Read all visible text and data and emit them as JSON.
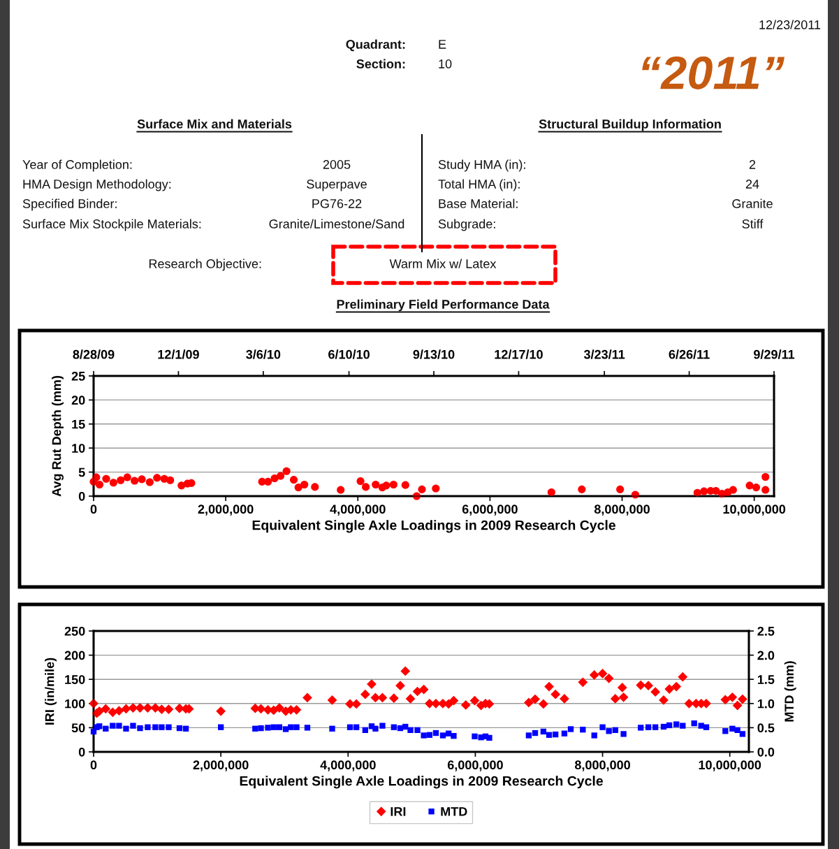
{
  "chart_data": [
    {
      "type": "other",
      "annotations": [
        "12/23/2011",
        "Quadrant:",
        "E",
        "Section:",
        "10",
        "“2011”",
        "Surface Mix and Materials",
        "Structural Buildup Information",
        "Year of Completion:",
        "2005",
        "HMA Design Methodology:",
        "Superpave",
        "Specified Binder:",
        "PG76-22",
        "Surface Mix Stockpile Materials:",
        "Granite/Limestone/Sand",
        "Study HMA (in):",
        "2",
        "Total HMA (in):",
        "24",
        "Base Material:",
        "Granite",
        "Subgrade:",
        "Stiff",
        "Research Objective:",
        "Warm Mix w/ Latex",
        "Preliminary Field Performance Data"
      ]
    },
    {
      "type": "scatter",
      "xlabel": "Equivalent Single Axle Loadings in 2009 Research Cycle",
      "ylabel": "Avg Rut Depth (mm)",
      "color": "#ff0000",
      "marker": "circle",
      "grid": "y",
      "x": [
        0,
        40000,
        90000,
        190000,
        300000,
        410000,
        510000,
        620000,
        730000,
        850000,
        960000,
        1070000,
        1160000,
        1330000,
        1420000,
        1480000,
        2550000,
        2640000,
        2740000,
        2830000,
        2920000,
        3030000,
        3100000,
        3190000,
        3350000,
        3740000,
        4040000,
        4120000,
        4270000,
        4370000,
        4430000,
        4540000,
        4720000,
        4890000,
        4970000,
        5180000,
        6930000,
        7390000,
        7970000,
        8200000,
        9140000,
        9240000,
        9340000,
        9420000,
        9510000,
        9600000,
        9680000,
        9930000,
        10030000,
        10170000,
        10170000
      ],
      "values": [
        3.0,
        3.9,
        2.4,
        3.6,
        2.8,
        3.3,
        3.9,
        3.2,
        3.5,
        2.9,
        3.8,
        3.6,
        3.3,
        2.2,
        2.6,
        2.7,
        3.0,
        3.0,
        3.7,
        4.2,
        5.2,
        3.4,
        1.8,
        2.4,
        1.9,
        1.3,
        3.1,
        1.9,
        2.4,
        1.8,
        2.2,
        2.4,
        2.3,
        0.0,
        1.4,
        1.6,
        0.8,
        1.4,
        1.4,
        0.3,
        0.7,
        1.0,
        1.1,
        1.1,
        0.5,
        0.8,
        1.3,
        2.2,
        1.8,
        4.0,
        1.3
      ],
      "xlim": [
        0,
        10300000
      ],
      "xticks": [
        0,
        {
          "value": 2000000,
          "label": "2,000,000"
        },
        {
          "value": 4000000,
          "label": "4,000,000"
        },
        {
          "value": 6000000,
          "label": "6,000,000"
        },
        {
          "value": 8000000,
          "label": "8,000,000"
        },
        {
          "value": 10000000,
          "label": "10,000,000"
        }
      ],
      "ylim": [
        0,
        25
      ],
      "yticks": [
        0,
        5,
        10,
        15,
        20,
        25
      ],
      "x2lim": [
        "2009-08-28",
        "2011-09-29"
      ],
      "x2ticks": [
        {
          "value": "2009-08-28",
          "label": "8/28/09"
        },
        {
          "value": "2009-12-01",
          "label": "12/1/09"
        },
        {
          "value": "2010-03-06",
          "label": "3/6/10"
        },
        {
          "value": "2010-06-10",
          "label": "6/10/10"
        },
        {
          "value": "2010-09-13",
          "label": "9/13/10"
        },
        {
          "value": "2010-12-17",
          "label": "12/17/10"
        },
        {
          "value": "2011-03-23",
          "label": "3/23/11"
        },
        {
          "value": "2011-06-26",
          "label": "6/26/11"
        },
        {
          "value": "2011-09-29",
          "label": "9/29/11"
        }
      ]
    },
    {
      "type": "scatter",
      "xlabel": "Equivalent Single Axle Loadings in 2009 Research Cycle",
      "ylabel": "IRI (in/mile)",
      "y2label": "MTD (mm)",
      "grid": "y",
      "legend": "bottom",
      "xlim": [
        0,
        10300000
      ],
      "xticks": [
        0,
        {
          "value": 2000000,
          "label": "2,000,000"
        },
        {
          "value": 4000000,
          "label": "4,000,000"
        },
        {
          "value": 6000000,
          "label": "6,000,000"
        },
        {
          "value": 8000000,
          "label": "8,000,000"
        },
        {
          "value": 10000000,
          "label": "10,000,000"
        }
      ],
      "ylim": [
        0,
        250
      ],
      "yticks": [
        0,
        50,
        100,
        150,
        200,
        250
      ],
      "y2lim": [
        0,
        2.5
      ],
      "y2ticks": [
        {
          "value": 0,
          "label": "0.0"
        },
        0.5,
        {
          "value": 1,
          "label": "1.0"
        },
        1.5,
        {
          "value": 2,
          "label": "2.0"
        },
        2.5
      ],
      "series": [
        {
          "name": "IRI",
          "color": "#ff0000",
          "marker": "diamond",
          "x": [
            0,
            50000,
            90000,
            190000,
            300000,
            400000,
            510000,
            620000,
            730000,
            850000,
            970000,
            1070000,
            1180000,
            1350000,
            1450000,
            1500000,
            2000000,
            2540000,
            2630000,
            2740000,
            2830000,
            2920000,
            3020000,
            3100000,
            3190000,
            3360000,
            3750000,
            4030000,
            4130000,
            4270000,
            4370000,
            4430000,
            4540000,
            4720000,
            4820000,
            4900000,
            4980000,
            5090000,
            5190000,
            5280000,
            5380000,
            5490000,
            5580000,
            5660000,
            5850000,
            5990000,
            6090000,
            6160000,
            6220000,
            6840000,
            6940000,
            7070000,
            7160000,
            7260000,
            7400000,
            7690000,
            7870000,
            8000000,
            8100000,
            8200000,
            8310000,
            8330000,
            8600000,
            8720000,
            8830000,
            8960000,
            9050000,
            9160000,
            9260000,
            9360000,
            9470000,
            9550000,
            9630000,
            9930000,
            10040000,
            10120000,
            10200000
          ],
          "values": [
            100,
            80,
            84,
            89,
            82,
            85,
            89,
            91,
            91,
            91,
            91,
            88,
            88,
            90,
            89,
            89,
            84,
            90,
            89,
            87,
            86,
            91,
            84,
            87,
            87,
            112,
            107,
            99,
            99,
            119,
            140,
            112,
            112,
            111,
            137,
            167,
            110,
            125,
            129,
            100,
            100,
            100,
            99,
            106,
            97,
            106,
            96,
            100,
            99,
            102,
            109,
            99,
            135,
            119,
            110,
            144,
            159,
            162,
            152,
            110,
            133,
            113,
            138,
            137,
            124,
            107,
            130,
            135,
            155,
            100,
            100,
            100,
            100,
            108,
            113,
            96,
            109
          ]
        },
        {
          "name": "MTD",
          "color": "#0000ff",
          "marker": "square",
          "axis": "y2",
          "x": [
            0,
            50000,
            90000,
            190000,
            300000,
            400000,
            510000,
            620000,
            730000,
            850000,
            970000,
            1070000,
            1180000,
            1350000,
            1450000,
            2000000,
            2540000,
            2630000,
            2740000,
            2830000,
            2920000,
            3020000,
            3100000,
            3190000,
            3360000,
            3750000,
            4030000,
            4130000,
            4270000,
            4370000,
            4430000,
            4540000,
            4720000,
            4820000,
            4900000,
            4980000,
            5090000,
            5190000,
            5280000,
            5380000,
            5490000,
            5580000,
            5660000,
            5990000,
            6090000,
            6160000,
            6220000,
            6840000,
            6940000,
            7070000,
            7160000,
            7260000,
            7400000,
            7500000,
            7690000,
            7870000,
            8000000,
            8100000,
            8200000,
            8330000,
            8600000,
            8720000,
            8830000,
            8960000,
            9050000,
            9160000,
            9260000,
            9440000,
            9550000,
            9630000,
            9930000,
            10040000,
            10120000,
            10200000
          ],
          "values": [
            0.42,
            0.51,
            0.53,
            0.48,
            0.54,
            0.54,
            0.48,
            0.54,
            0.49,
            0.51,
            0.51,
            0.51,
            0.51,
            0.49,
            0.48,
            0.51,
            0.48,
            0.49,
            0.5,
            0.51,
            0.51,
            0.47,
            0.51,
            0.51,
            0.5,
            0.48,
            0.51,
            0.51,
            0.45,
            0.53,
            0.48,
            0.54,
            0.51,
            0.49,
            0.52,
            0.45,
            0.45,
            0.34,
            0.35,
            0.39,
            0.34,
            0.38,
            0.33,
            0.32,
            0.3,
            0.32,
            0.29,
            0.34,
            0.39,
            0.42,
            0.35,
            0.36,
            0.38,
            0.47,
            0.46,
            0.34,
            0.51,
            0.43,
            0.45,
            0.37,
            0.5,
            0.51,
            0.51,
            0.52,
            0.55,
            0.57,
            0.54,
            0.59,
            0.54,
            0.51,
            0.43,
            0.48,
            0.45,
            0.37
          ]
        }
      ]
    }
  ]
}
